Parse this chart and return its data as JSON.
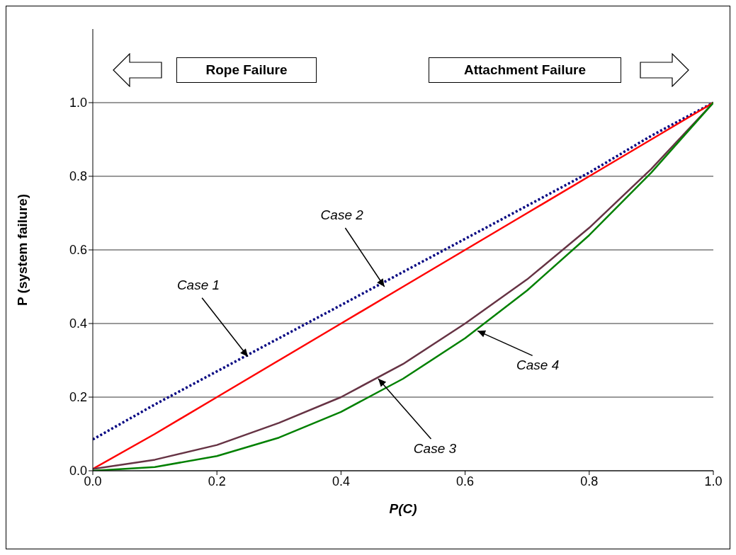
{
  "chart_data": {
    "type": "line",
    "xlabel": "P(C)",
    "ylabel": "P (system failure)",
    "x": [
      0,
      0.1,
      0.2,
      0.3,
      0.4,
      0.5,
      0.6,
      0.7,
      0.8,
      0.9,
      1.0
    ],
    "series": [
      {
        "color": "#000080",
        "line_style": "dotted",
        "values": [
          0.085,
          0.18,
          0.27,
          0.36,
          0.45,
          0.54,
          0.63,
          0.72,
          0.81,
          0.91,
          1.0
        ]
      },
      {
        "color": "#ff0000",
        "values": [
          0.005,
          0.1,
          0.2,
          0.3,
          0.4,
          0.5,
          0.6,
          0.7,
          0.8,
          0.9,
          1.0
        ]
      },
      {
        "color": "#663344",
        "values": [
          0.005,
          0.03,
          0.07,
          0.13,
          0.2,
          0.29,
          0.4,
          0.52,
          0.66,
          0.82,
          1.0
        ]
      },
      {
        "color": "#008000",
        "values": [
          0,
          0.01,
          0.04,
          0.09,
          0.16,
          0.25,
          0.36,
          0.49,
          0.64,
          0.81,
          1.0
        ]
      }
    ],
    "xlim": [
      0,
      1
    ],
    "xticks": [
      {
        "value": 0,
        "label": "0.0"
      },
      {
        "value": 0.2,
        "label": "0.2"
      },
      {
        "value": 0.4,
        "label": "0.4"
      },
      {
        "value": 0.6,
        "label": "0.6"
      },
      {
        "value": 0.8,
        "label": "0.8"
      },
      {
        "value": 1,
        "label": "1.0"
      }
    ],
    "ylim": [
      0,
      1.2
    ],
    "yticks": [
      {
        "value": 0,
        "label": "0.0"
      },
      {
        "value": 0.2,
        "label": "0.2"
      },
      {
        "value": 0.4,
        "label": "0.4"
      },
      {
        "value": 0.6,
        "label": "0.6"
      },
      {
        "value": 0.8,
        "label": "0.8"
      },
      {
        "value": 1,
        "label": "1.0"
      }
    ],
    "grid": "y",
    "marker": "none",
    "legend": false,
    "annotations": [
      {
        "text": "Case 1",
        "x": 0.25,
        "y": 0.31
      },
      {
        "text": "Case 2",
        "x": 0.47,
        "y": 0.5
      },
      {
        "text": "Case 3",
        "x": 0.46,
        "y": 0.25
      },
      {
        "text": "Case 4",
        "x": 0.62,
        "y": 0.38
      },
      "Rope Failure",
      "Attachment Failure"
    ]
  }
}
